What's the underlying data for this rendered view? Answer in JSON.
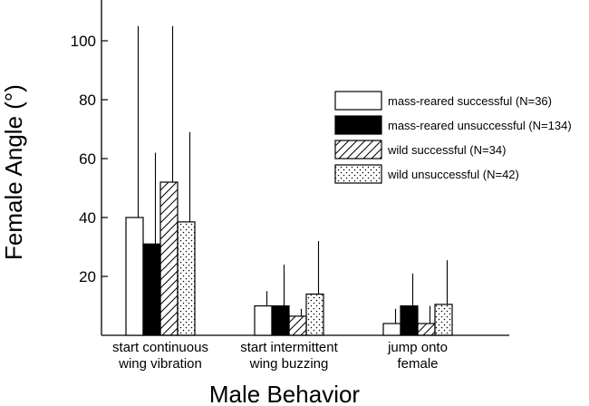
{
  "chart_data": {
    "type": "bar",
    "xlabel": "Male Behavior",
    "ylabel": "Female Angle (°)",
    "ylim": [
      0,
      116
    ],
    "yticks": [
      20,
      40,
      60,
      80,
      100
    ],
    "grid": false,
    "legend_position": "right",
    "categories": [
      [
        "start continuous",
        "wing vibration"
      ],
      [
        "start intermittent",
        "wing buzzing"
      ],
      [
        "jump onto",
        "female"
      ]
    ],
    "series": [
      {
        "name": "mass-reared successful (N=36)",
        "pattern": "white",
        "values": [
          40,
          10,
          4
        ],
        "error_upper": [
          105,
          15,
          9
        ]
      },
      {
        "name": "mass-reared unsuccessful (N=134)",
        "pattern": "black",
        "values": [
          31,
          10,
          10
        ],
        "error_upper": [
          62,
          24,
          21
        ]
      },
      {
        "name": "wild successful (N=34)",
        "pattern": "hatched",
        "values": [
          52,
          6.5,
          4
        ],
        "error_upper": [
          105,
          9,
          10
        ]
      },
      {
        "name": "wild unsuccessful (N=42)",
        "pattern": "dotted",
        "values": [
          38.5,
          14,
          10.5
        ],
        "error_upper": [
          69,
          32,
          25.5
        ]
      }
    ]
  }
}
